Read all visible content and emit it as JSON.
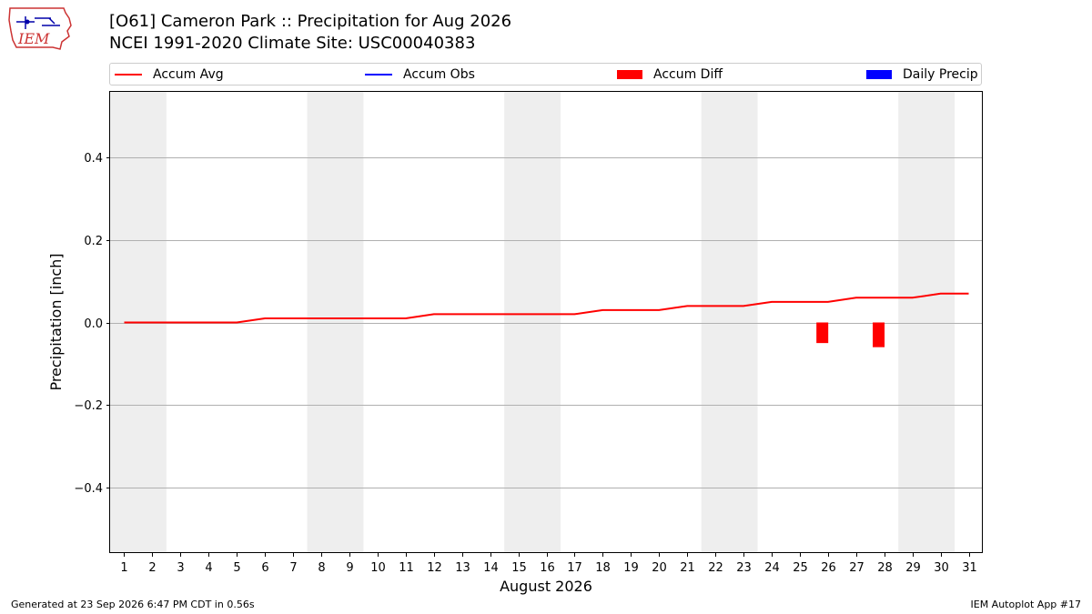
{
  "header": {
    "title_line1": "[O61] Cameron Park :: Precipitation for Aug 2026",
    "title_line2": "NCEI 1991-2020 Climate Site: USC00040383",
    "logo_text": "IEM"
  },
  "legend": {
    "items": [
      {
        "label": "Accum Avg",
        "kind": "line",
        "color": "#ff0000"
      },
      {
        "label": "Accum Obs",
        "kind": "line",
        "color": "#0000ff"
      },
      {
        "label": "Accum Diff",
        "kind": "box",
        "color": "#ff0000"
      },
      {
        "label": "Daily Precip",
        "kind": "box",
        "color": "#0000ff"
      }
    ]
  },
  "footer": {
    "left": "Generated at 23 Sep 2026 6:47 PM CDT in 0.56s",
    "right": "IEM Autoplot App #17"
  },
  "chart_data": {
    "type": "line",
    "xlabel": "August 2026",
    "ylabel": "Precipitation [inch]",
    "ylim": [
      -0.56,
      0.56
    ],
    "xlim": [
      0.5,
      31.5
    ],
    "grid": "horizontal",
    "legend_position": "top",
    "x": [
      1,
      2,
      3,
      4,
      5,
      6,
      7,
      8,
      9,
      10,
      11,
      12,
      13,
      14,
      15,
      16,
      17,
      18,
      19,
      20,
      21,
      22,
      23,
      24,
      25,
      26,
      27,
      28,
      29,
      30,
      31
    ],
    "x_tick_labels": [
      "1",
      "2",
      "3",
      "4",
      "5",
      "6",
      "7",
      "8",
      "9",
      "10",
      "11",
      "12",
      "13",
      "14",
      "15",
      "16",
      "17",
      "18",
      "19",
      "20",
      "21",
      "22",
      "23",
      "24",
      "25",
      "26",
      "27",
      "28",
      "29",
      "30",
      "31"
    ],
    "y_ticks": [
      0.4,
      0.2,
      0.0,
      -0.2,
      -0.4
    ],
    "y_tick_labels": [
      "0.4",
      "0.2",
      "0.0",
      "−0.2",
      "−0.4"
    ],
    "weekend_shading": [
      [
        0.5,
        2.5
      ],
      [
        7.5,
        9.5
      ],
      [
        14.5,
        16.5
      ],
      [
        21.5,
        23.5
      ],
      [
        28.5,
        30.5
      ]
    ],
    "series": [
      {
        "name": "Accum Avg",
        "kind": "line",
        "color": "#ff0000",
        "values": [
          0,
          0,
          0,
          0,
          0,
          0.01,
          0.01,
          0.01,
          0.01,
          0.01,
          0.01,
          0.02,
          0.02,
          0.02,
          0.02,
          0.02,
          0.02,
          0.03,
          0.03,
          0.03,
          0.04,
          0.04,
          0.04,
          0.05,
          0.05,
          0.05,
          0.06,
          0.06,
          0.06,
          0.07,
          0.07
        ]
      },
      {
        "name": "Accum Diff",
        "kind": "bar",
        "color": "#ff0000",
        "points": [
          {
            "x": 25.8,
            "value": -0.05
          },
          {
            "x": 27.8,
            "value": -0.06
          }
        ]
      }
    ]
  }
}
